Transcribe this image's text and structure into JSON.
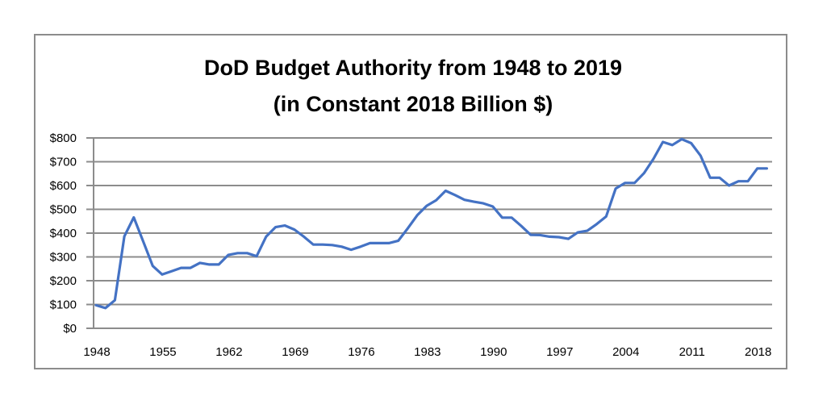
{
  "chart_data": {
    "type": "line",
    "title": "DoD Budget Authority from 1948 to 2019",
    "subtitle": "(in Constant 2018 Billion $)",
    "xlabel": "",
    "ylabel": "",
    "ylim": [
      0,
      800
    ],
    "y_ticks": [
      0,
      100,
      200,
      300,
      400,
      500,
      600,
      700,
      800
    ],
    "y_tick_labels": [
      "$0",
      "$100",
      "$200",
      "$300",
      "$400",
      "$500",
      "$600",
      "$700",
      "$800"
    ],
    "x_ticks": [
      1948,
      1955,
      1962,
      1969,
      1976,
      1983,
      1990,
      1997,
      2004,
      2011,
      2018
    ],
    "x_tick_labels": [
      "1948",
      "1955",
      "1962",
      "1969",
      "1976",
      "1983",
      "1990",
      "1997",
      "2004",
      "2011",
      "2018"
    ],
    "xlim": [
      1948,
      2019
    ],
    "grid": true,
    "legend": "none",
    "series": [
      {
        "name": "DoD Budget Authority",
        "color": "#4472C4",
        "x": [
          1948,
          1949,
          1950,
          1951,
          1952,
          1953,
          1954,
          1955,
          1956,
          1957,
          1958,
          1959,
          1960,
          1961,
          1962,
          1963,
          1964,
          1965,
          1966,
          1967,
          1968,
          1969,
          1970,
          1971,
          1972,
          1973,
          1974,
          1975,
          1976,
          1977,
          1978,
          1979,
          1980,
          1981,
          1982,
          1983,
          1984,
          1985,
          1986,
          1987,
          1988,
          1989,
          1990,
          1991,
          1992,
          1993,
          1994,
          1995,
          1996,
          1997,
          1998,
          1999,
          2000,
          2001,
          2002,
          2003,
          2004,
          2005,
          2006,
          2007,
          2008,
          2009,
          2010,
          2011,
          2012,
          2013,
          2014,
          2015,
          2016,
          2017,
          2018,
          2019
        ],
        "values": [
          97,
          85,
          118,
          386,
          466,
          364,
          262,
          226,
          240,
          254,
          254,
          275,
          268,
          268,
          308,
          316,
          316,
          303,
          385,
          425,
          432,
          415,
          385,
          352,
          352,
          350,
          343,
          330,
          343,
          358,
          358,
          358,
          368,
          420,
          475,
          515,
          538,
          578,
          560,
          540,
          532,
          525,
          512,
          465,
          465,
          430,
          393,
          392,
          385,
          383,
          376,
          403,
          410,
          438,
          470,
          587,
          611,
          611,
          652,
          712,
          783,
          770,
          795,
          778,
          725,
          633,
          633,
          600,
          618,
          618,
          672,
          672
        ]
      }
    ]
  }
}
